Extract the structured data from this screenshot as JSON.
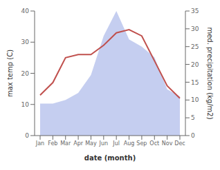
{
  "chart_data": {
    "type": "line",
    "xlabel": "date (month)",
    "ylabel": "max temp (C)",
    "y2label": "med. precipitation (kg/m2)",
    "categories": [
      "Jan",
      "Feb",
      "Mar",
      "Apr",
      "May",
      "Jun",
      "Jul",
      "Aug",
      "Sep",
      "Oct",
      "Nov",
      "Dec"
    ],
    "series": [
      {
        "type": "area",
        "axis": "y2",
        "color": "#c5cef0",
        "values": [
          9,
          9,
          10,
          12,
          17,
          28,
          35,
          27,
          25,
          22,
          13,
          11
        ]
      },
      {
        "type": "line",
        "color": "#c0504d",
        "values": [
          13,
          17,
          25,
          26,
          26,
          29,
          33,
          34,
          32,
          24,
          16,
          12
        ]
      }
    ],
    "ylim": [
      0,
      40
    ],
    "yticks": [
      0,
      10,
      20,
      30,
      40
    ],
    "y2lim": [
      0,
      35
    ],
    "y2ticks": [
      0,
      5,
      10,
      15,
      20,
      25,
      30,
      35
    ],
    "grid": false
  }
}
